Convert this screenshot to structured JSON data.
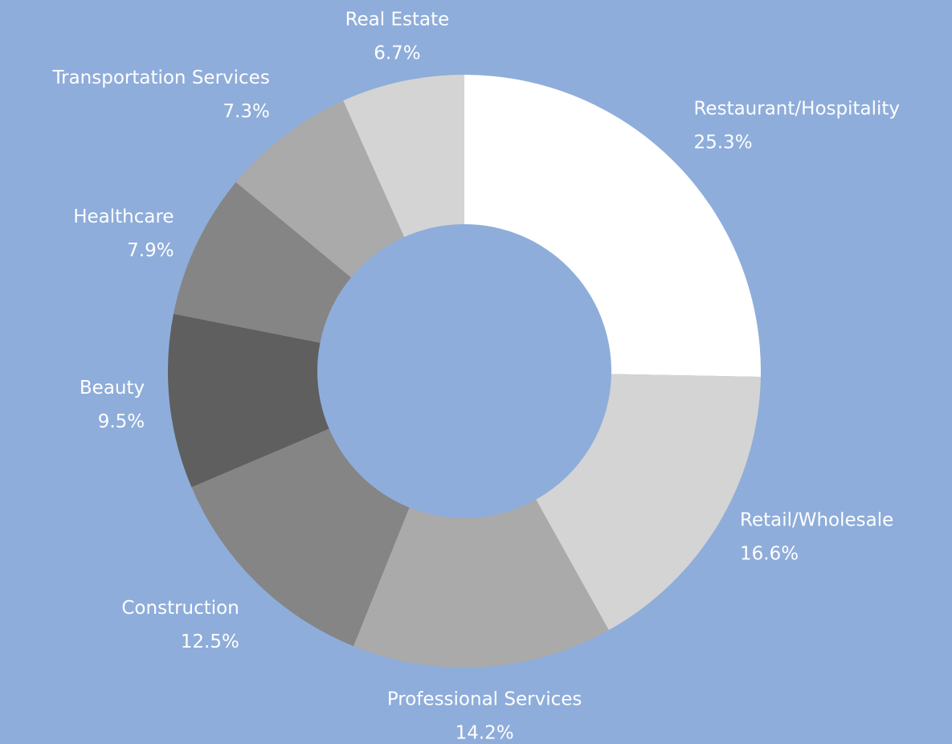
{
  "chart_data": {
    "type": "donut",
    "categories": [
      "Restaurant/Hospitality",
      "Retail/Wholesale",
      "Professional Services",
      "Construction",
      "Beauty",
      "Healthcare",
      "Transportation Services",
      "Real Estate"
    ],
    "values": [
      25.3,
      16.6,
      14.2,
      12.5,
      9.5,
      7.9,
      7.3,
      6.7
    ],
    "value_labels": [
      "25.3%",
      "16.6%",
      "14.2%",
      "12.5%",
      "9.5%",
      "7.9%",
      "7.3%",
      "6.7%"
    ],
    "colors": [
      "#ffffff",
      "#d4d4d4",
      "#aaaaaa",
      "#858585",
      "#5f5f5f",
      "#858585",
      "#aaaaaa",
      "#d4d4d4"
    ],
    "background": "#8eadda"
  }
}
